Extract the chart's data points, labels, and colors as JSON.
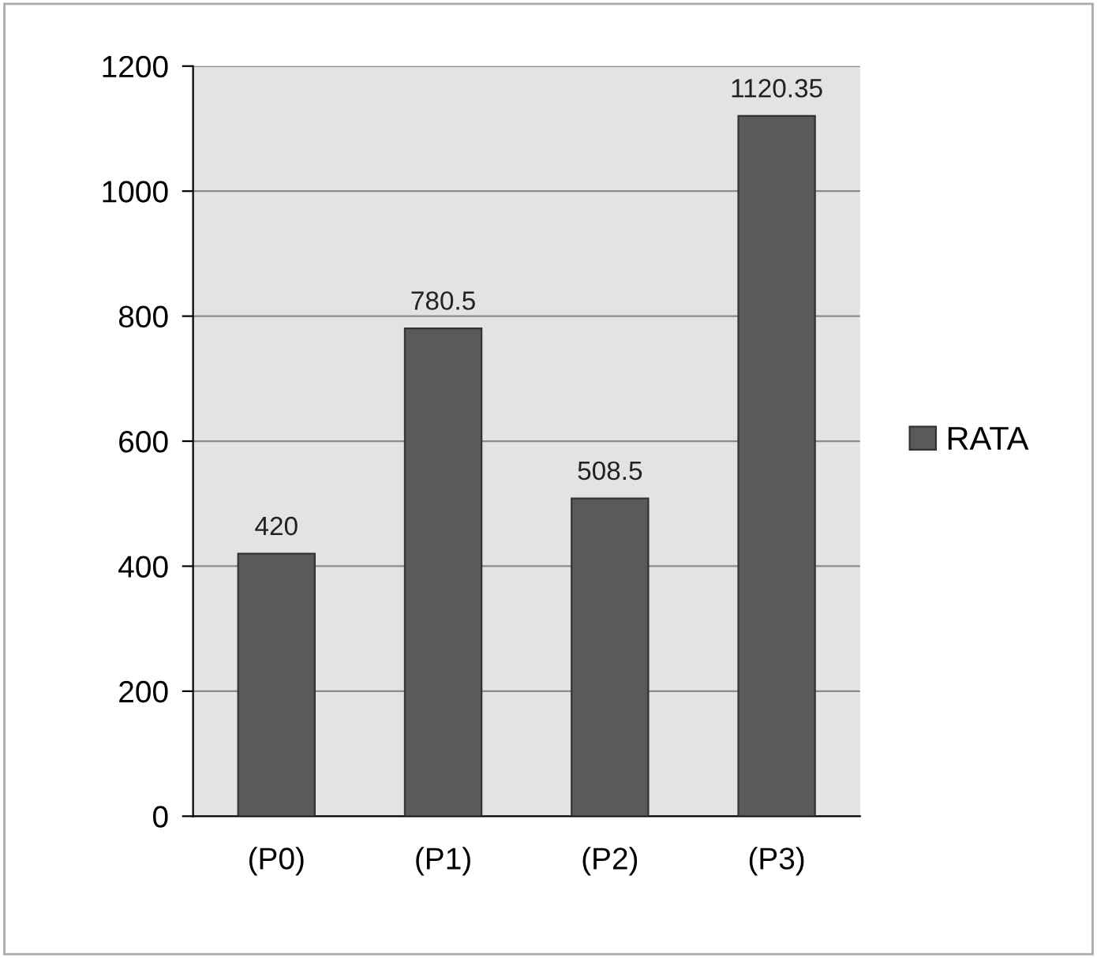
{
  "chart_data": {
    "type": "bar",
    "categories": [
      "(P0)",
      "(P1)",
      "(P2)",
      "(P3)"
    ],
    "series": [
      {
        "name": "RATA",
        "color": "#5a5a5a",
        "values": [
          420,
          780.5,
          508.5,
          1120.35
        ]
      }
    ],
    "ylim": [
      0,
      1200
    ],
    "yticks": [
      0,
      200,
      400,
      600,
      800,
      1000,
      1200
    ],
    "grid": "y",
    "legend": "right",
    "data_labels": true
  }
}
